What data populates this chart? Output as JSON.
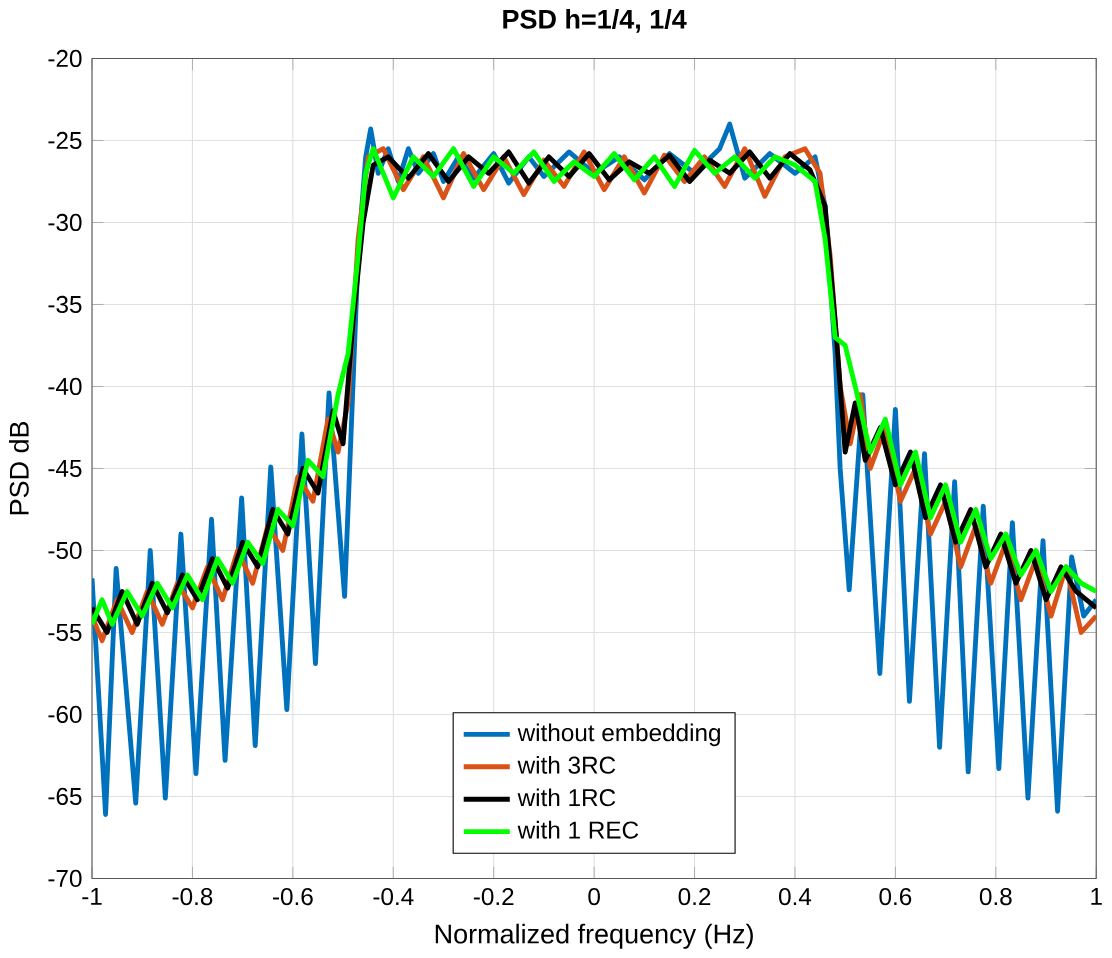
{
  "chart_data": {
    "type": "line",
    "title": "PSD h=1/4, 1/4",
    "xlabel": "Normalized frequency (Hz)",
    "ylabel": "PSD dB",
    "xlim": [
      -1,
      1
    ],
    "ylim": [
      -70,
      -20
    ],
    "xticks": [
      -1,
      -0.8,
      -0.6,
      -0.4,
      -0.2,
      0,
      0.2,
      0.4,
      0.6,
      0.8,
      1
    ],
    "yticks": [
      -70,
      -65,
      -60,
      -55,
      -50,
      -45,
      -40,
      -35,
      -30,
      -25,
      -20
    ],
    "grid": true,
    "legend": "bottom",
    "line_style": "solid",
    "series": [
      {
        "name": "without embedding",
        "color": "#0072bd",
        "x": [
          -1,
          -0.973,
          -0.952,
          -0.913,
          -0.884,
          -0.854,
          -0.823,
          -0.793,
          -0.762,
          -0.735,
          -0.702,
          -0.675,
          -0.644,
          -0.612,
          -0.582,
          -0.555,
          -0.528,
          -0.497,
          -0.47,
          -0.455,
          -0.445,
          -0.43,
          -0.41,
          -0.39,
          -0.37,
          -0.35,
          -0.32,
          -0.3,
          -0.27,
          -0.24,
          -0.2,
          -0.17,
          -0.13,
          -0.1,
          -0.05,
          0,
          0.05,
          0.1,
          0.15,
          0.2,
          0.25,
          0.27,
          0.3,
          0.35,
          0.4,
          0.44,
          0.46,
          0.48,
          0.49,
          0.508,
          0.535,
          0.569,
          0.6,
          0.628,
          0.658,
          0.688,
          0.718,
          0.745,
          0.775,
          0.806,
          0.833,
          0.864,
          0.894,
          0.923,
          0.951,
          0.975,
          1
        ],
        "values": [
          -51.7,
          -66.1,
          -51.1,
          -65.4,
          -50,
          -65.1,
          -49,
          -63.6,
          -48.1,
          -62.8,
          -46.8,
          -61.9,
          -44.9,
          -59.7,
          -42.9,
          -56.9,
          -40.4,
          -52.8,
          -32,
          -26,
          -24.3,
          -27,
          -25.5,
          -27.5,
          -25.5,
          -27,
          -25.8,
          -27.5,
          -26,
          -27.3,
          -25.8,
          -27.6,
          -26,
          -27.2,
          -25.7,
          -27,
          -26,
          -27.4,
          -25.8,
          -27,
          -25.5,
          -24,
          -27.3,
          -25.8,
          -27,
          -26,
          -29,
          -38,
          -45,
          -52.4,
          -40.5,
          -57.5,
          -41.4,
          -59.2,
          -44.1,
          -62,
          -45.8,
          -63.5,
          -47.3,
          -63.3,
          -48.3,
          -65.1,
          -49.4,
          -65.9,
          -50.4,
          -54,
          -53
        ]
      },
      {
        "name": "with 3RC",
        "color": "#d95319",
        "x": [
          -1,
          -0.98,
          -0.95,
          -0.92,
          -0.89,
          -0.86,
          -0.83,
          -0.8,
          -0.77,
          -0.74,
          -0.71,
          -0.68,
          -0.65,
          -0.62,
          -0.59,
          -0.56,
          -0.53,
          -0.51,
          -0.49,
          -0.47,
          -0.45,
          -0.42,
          -0.38,
          -0.34,
          -0.3,
          -0.26,
          -0.22,
          -0.18,
          -0.14,
          -0.1,
          -0.06,
          -0.02,
          0.02,
          0.06,
          0.1,
          0.14,
          0.18,
          0.22,
          0.26,
          0.3,
          0.34,
          0.38,
          0.42,
          0.45,
          0.47,
          0.49,
          0.51,
          0.53,
          0.55,
          0.58,
          0.61,
          0.64,
          0.67,
          0.7,
          0.73,
          0.76,
          0.79,
          0.82,
          0.85,
          0.88,
          0.91,
          0.94,
          0.97,
          1
        ],
        "values": [
          -54,
          -55.5,
          -53,
          -55,
          -52.5,
          -54.5,
          -52,
          -53.5,
          -51,
          -53,
          -50,
          -52,
          -48.5,
          -50,
          -45.5,
          -47,
          -42,
          -44,
          -41,
          -31,
          -26,
          -25.5,
          -28,
          -26,
          -28.5,
          -25.8,
          -28,
          -26,
          -28.3,
          -26.2,
          -27.8,
          -25.7,
          -28,
          -26,
          -28.2,
          -25.9,
          -27.5,
          -26,
          -27.8,
          -25.5,
          -28.4,
          -26,
          -25.5,
          -27,
          -32,
          -40,
          -43.5,
          -40.5,
          -45,
          -42.5,
          -47,
          -45,
          -49,
          -47,
          -51,
          -48.5,
          -52,
          -49.5,
          -53,
          -50.5,
          -54,
          -51,
          -55,
          -54
        ]
      },
      {
        "name": "with 1RC",
        "color": "#000000",
        "x": [
          -1,
          -0.97,
          -0.94,
          -0.91,
          -0.88,
          -0.85,
          -0.82,
          -0.79,
          -0.76,
          -0.73,
          -0.7,
          -0.67,
          -0.64,
          -0.61,
          -0.58,
          -0.55,
          -0.52,
          -0.5,
          -0.48,
          -0.46,
          -0.44,
          -0.41,
          -0.37,
          -0.33,
          -0.29,
          -0.25,
          -0.21,
          -0.17,
          -0.13,
          -0.09,
          -0.05,
          -0.01,
          0.03,
          0.07,
          0.11,
          0.15,
          0.19,
          0.23,
          0.27,
          0.31,
          0.35,
          0.39,
          0.43,
          0.46,
          0.48,
          0.5,
          0.52,
          0.54,
          0.57,
          0.6,
          0.63,
          0.66,
          0.69,
          0.72,
          0.75,
          0.78,
          0.81,
          0.84,
          0.87,
          0.9,
          0.93,
          0.96,
          1
        ],
        "values": [
          -53.5,
          -55,
          -52.5,
          -54.5,
          -52,
          -53.8,
          -51.5,
          -53,
          -50.5,
          -52.3,
          -49.5,
          -51,
          -47.5,
          -49,
          -45,
          -46.5,
          -41.5,
          -43.5,
          -36,
          -30,
          -26.5,
          -26,
          -27.3,
          -25.8,
          -27.5,
          -26,
          -27,
          -25.7,
          -27.6,
          -26,
          -27.2,
          -25.8,
          -27.4,
          -26.3,
          -27,
          -25.9,
          -27.5,
          -26.2,
          -27,
          -25.7,
          -27.3,
          -25.8,
          -26.8,
          -29,
          -36,
          -44,
          -41,
          -44.5,
          -42.5,
          -46,
          -44,
          -48,
          -46,
          -49.5,
          -47.5,
          -51,
          -49,
          -52,
          -50,
          -53,
          -51,
          -52.5,
          -53.5
        ]
      },
      {
        "name": "with 1 REC",
        "color": "#00ff00",
        "x": [
          -1,
          -0.98,
          -0.96,
          -0.93,
          -0.9,
          -0.87,
          -0.84,
          -0.81,
          -0.78,
          -0.75,
          -0.72,
          -0.69,
          -0.66,
          -0.63,
          -0.6,
          -0.57,
          -0.54,
          -0.51,
          -0.49,
          -0.47,
          -0.455,
          -0.44,
          -0.4,
          -0.36,
          -0.32,
          -0.28,
          -0.24,
          -0.2,
          -0.16,
          -0.12,
          -0.08,
          -0.04,
          0,
          0.04,
          0.08,
          0.12,
          0.16,
          0.2,
          0.24,
          0.28,
          0.32,
          0.36,
          0.4,
          0.44,
          0.46,
          0.48,
          0.5,
          0.52,
          0.55,
          0.58,
          0.61,
          0.64,
          0.67,
          0.7,
          0.73,
          0.76,
          0.79,
          0.82,
          0.85,
          0.88,
          0.91,
          0.94,
          0.97,
          1
        ],
        "values": [
          -54.5,
          -53,
          -54.5,
          -52.5,
          -54,
          -52,
          -53.5,
          -51.5,
          -53,
          -50.5,
          -52,
          -49.5,
          -50.8,
          -47.5,
          -48.5,
          -44.5,
          -45.5,
          -40.5,
          -38,
          -32,
          -27,
          -25.5,
          -28.5,
          -26,
          -27.2,
          -25.5,
          -27.8,
          -26,
          -27,
          -25.7,
          -27.5,
          -26.3,
          -27.2,
          -25.8,
          -27.4,
          -26,
          -27.8,
          -25.6,
          -27,
          -26,
          -27.3,
          -26,
          -26.5,
          -27.5,
          -31,
          -37,
          -37.5,
          -40,
          -44,
          -42,
          -46,
          -44,
          -48,
          -46,
          -49.5,
          -47.5,
          -50.5,
          -49,
          -51.5,
          -50,
          -52.5,
          -51,
          -52,
          -52.5
        ]
      }
    ]
  }
}
